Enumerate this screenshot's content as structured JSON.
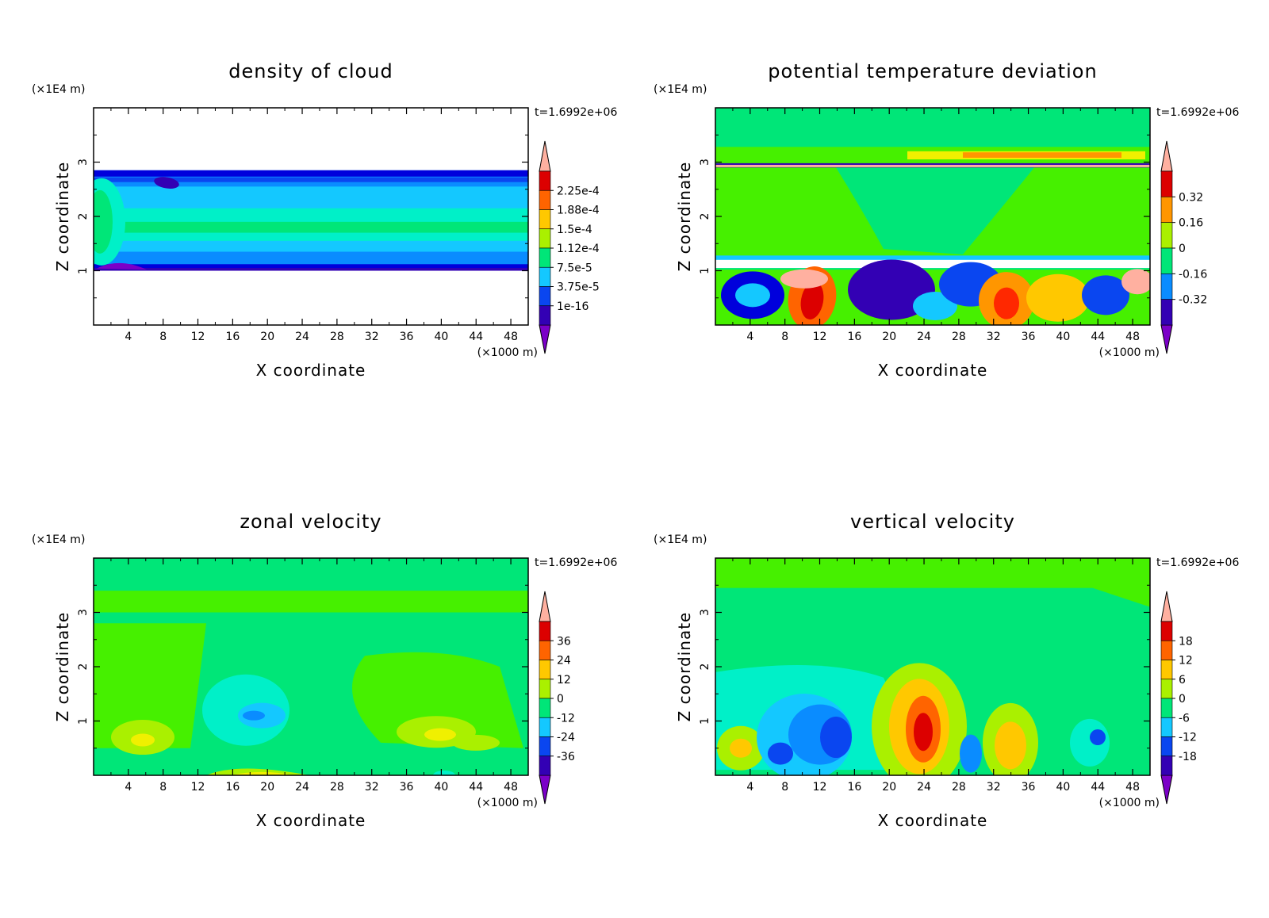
{
  "figure": {
    "time_label": "t=1.6992e+06",
    "x_unit": "(×1000 m)",
    "z_unit": "(×1E4 m)",
    "xlabel": "X coordinate",
    "zlabel": "Z coordinate",
    "colors": [
      "#7b00c8",
      "#3300b4",
      "#0000dc",
      "#0a46f0",
      "#0a8cff",
      "#14c8ff",
      "#00f0c8",
      "#00e678",
      "#46f000",
      "#aaf000",
      "#f0f000",
      "#ffc800",
      "#ff9600",
      "#ff6400",
      "#ff2800",
      "#dc0000",
      "#ffb0a0"
    ]
  },
  "chart_data": [
    {
      "type": "heatmap",
      "title": "density of cloud",
      "x_ticks": [
        4,
        8,
        12,
        16,
        20,
        24,
        28,
        32,
        36,
        40,
        44,
        48
      ],
      "z_ticks": [
        1,
        2,
        3
      ],
      "xlim": [
        0,
        50
      ],
      "zlim": [
        0,
        4
      ],
      "colorbar_labels": [
        "2.25e-4",
        "1.88e-4",
        "1.5e-4",
        "1.12e-4",
        "7.5e-5",
        "3.75e-5",
        "1e-16"
      ]
    },
    {
      "type": "heatmap",
      "title": "potential temperature deviation",
      "x_ticks": [
        4,
        8,
        12,
        16,
        20,
        24,
        28,
        32,
        36,
        40,
        44,
        48
      ],
      "z_ticks": [
        1,
        2,
        3
      ],
      "xlim": [
        0,
        50
      ],
      "zlim": [
        0,
        4
      ],
      "colorbar_labels": [
        "0.32",
        "0.16",
        "0",
        "-0.16",
        "-0.32"
      ]
    },
    {
      "type": "heatmap",
      "title": "zonal velocity",
      "x_ticks": [
        4,
        8,
        12,
        16,
        20,
        24,
        28,
        32,
        36,
        40,
        44,
        48
      ],
      "z_ticks": [
        1,
        2,
        3
      ],
      "xlim": [
        0,
        50
      ],
      "zlim": [
        0,
        4
      ],
      "colorbar_labels": [
        "36",
        "24",
        "12",
        "0",
        "-12",
        "-24",
        "-36"
      ]
    },
    {
      "type": "heatmap",
      "title": "vertical velocity",
      "x_ticks": [
        4,
        8,
        12,
        16,
        20,
        24,
        28,
        32,
        36,
        40,
        44,
        48
      ],
      "z_ticks": [
        1,
        2,
        3
      ],
      "xlim": [
        0,
        50
      ],
      "zlim": [
        0,
        4
      ],
      "colorbar_labels": [
        "18",
        "12",
        "6",
        "0",
        "-6",
        "-12",
        "-18"
      ]
    }
  ]
}
